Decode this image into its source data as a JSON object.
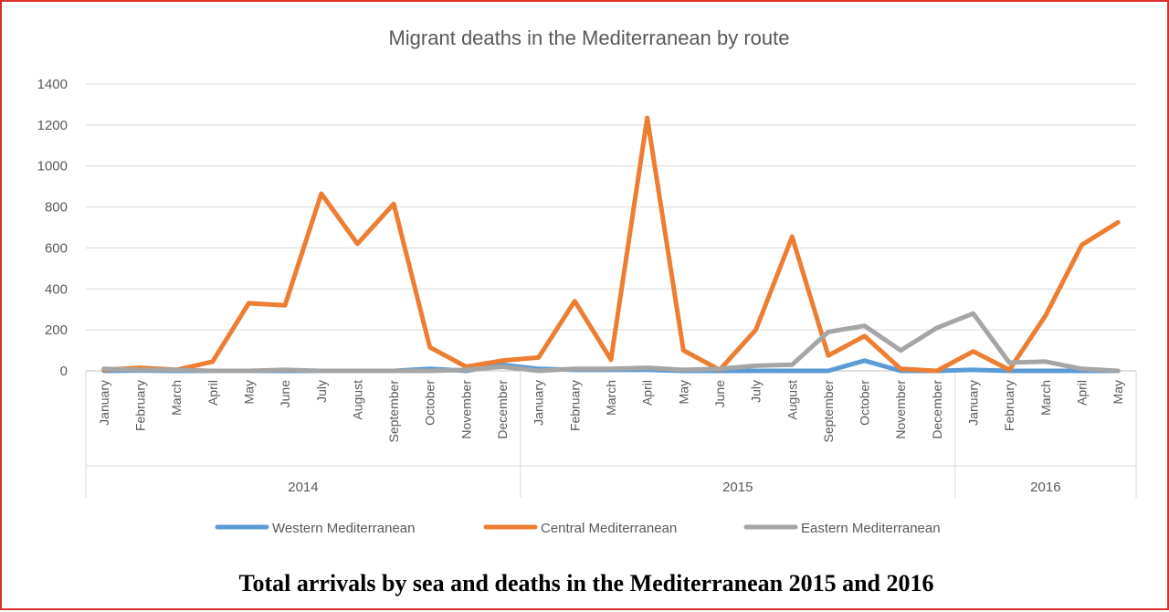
{
  "caption": "Total arrivals by sea and deaths in the Mediterranean 2015 and 2016",
  "chart_data": {
    "type": "line",
    "title": "Migrant deaths in the Mediterranean by route",
    "ylim": [
      0,
      1400
    ],
    "yticks": [
      0,
      200,
      400,
      600,
      800,
      1000,
      1200,
      1400
    ],
    "grid": true,
    "legend_position": "bottom",
    "categories": [
      "January",
      "February",
      "March",
      "April",
      "May",
      "June",
      "July",
      "August",
      "September",
      "October",
      "November",
      "December",
      "January",
      "February",
      "March",
      "April",
      "May",
      "June",
      "July",
      "August",
      "September",
      "October",
      "November",
      "December",
      "January",
      "February",
      "March",
      "April",
      "May"
    ],
    "year_groups": [
      {
        "label": "2014",
        "start": 0,
        "end": 11
      },
      {
        "label": "2015",
        "start": 12,
        "end": 23
      },
      {
        "label": "2016",
        "start": 24,
        "end": 28
      }
    ],
    "series": [
      {
        "name": "Western Mediterranean",
        "color": "#5b9bd5",
        "values": [
          0,
          2,
          0,
          0,
          0,
          0,
          0,
          0,
          0,
          10,
          0,
          30,
          10,
          5,
          5,
          5,
          0,
          0,
          0,
          0,
          0,
          50,
          0,
          0,
          5,
          0,
          0,
          0,
          0
        ]
      },
      {
        "name": "Central Mediterranean",
        "color": "#ed7d31",
        "values": [
          5,
          15,
          5,
          45,
          330,
          320,
          865,
          620,
          815,
          115,
          20,
          50,
          65,
          340,
          55,
          1235,
          100,
          5,
          200,
          655,
          75,
          170,
          10,
          0,
          95,
          5,
          270,
          615,
          725
        ]
      },
      {
        "name": "Eastern Mediterranean",
        "color": "#a5a5a5",
        "values": [
          10,
          5,
          5,
          0,
          0,
          5,
          0,
          0,
          0,
          0,
          5,
          20,
          0,
          10,
          10,
          15,
          5,
          10,
          25,
          30,
          190,
          220,
          100,
          210,
          280,
          40,
          45,
          10,
          0
        ]
      }
    ]
  }
}
